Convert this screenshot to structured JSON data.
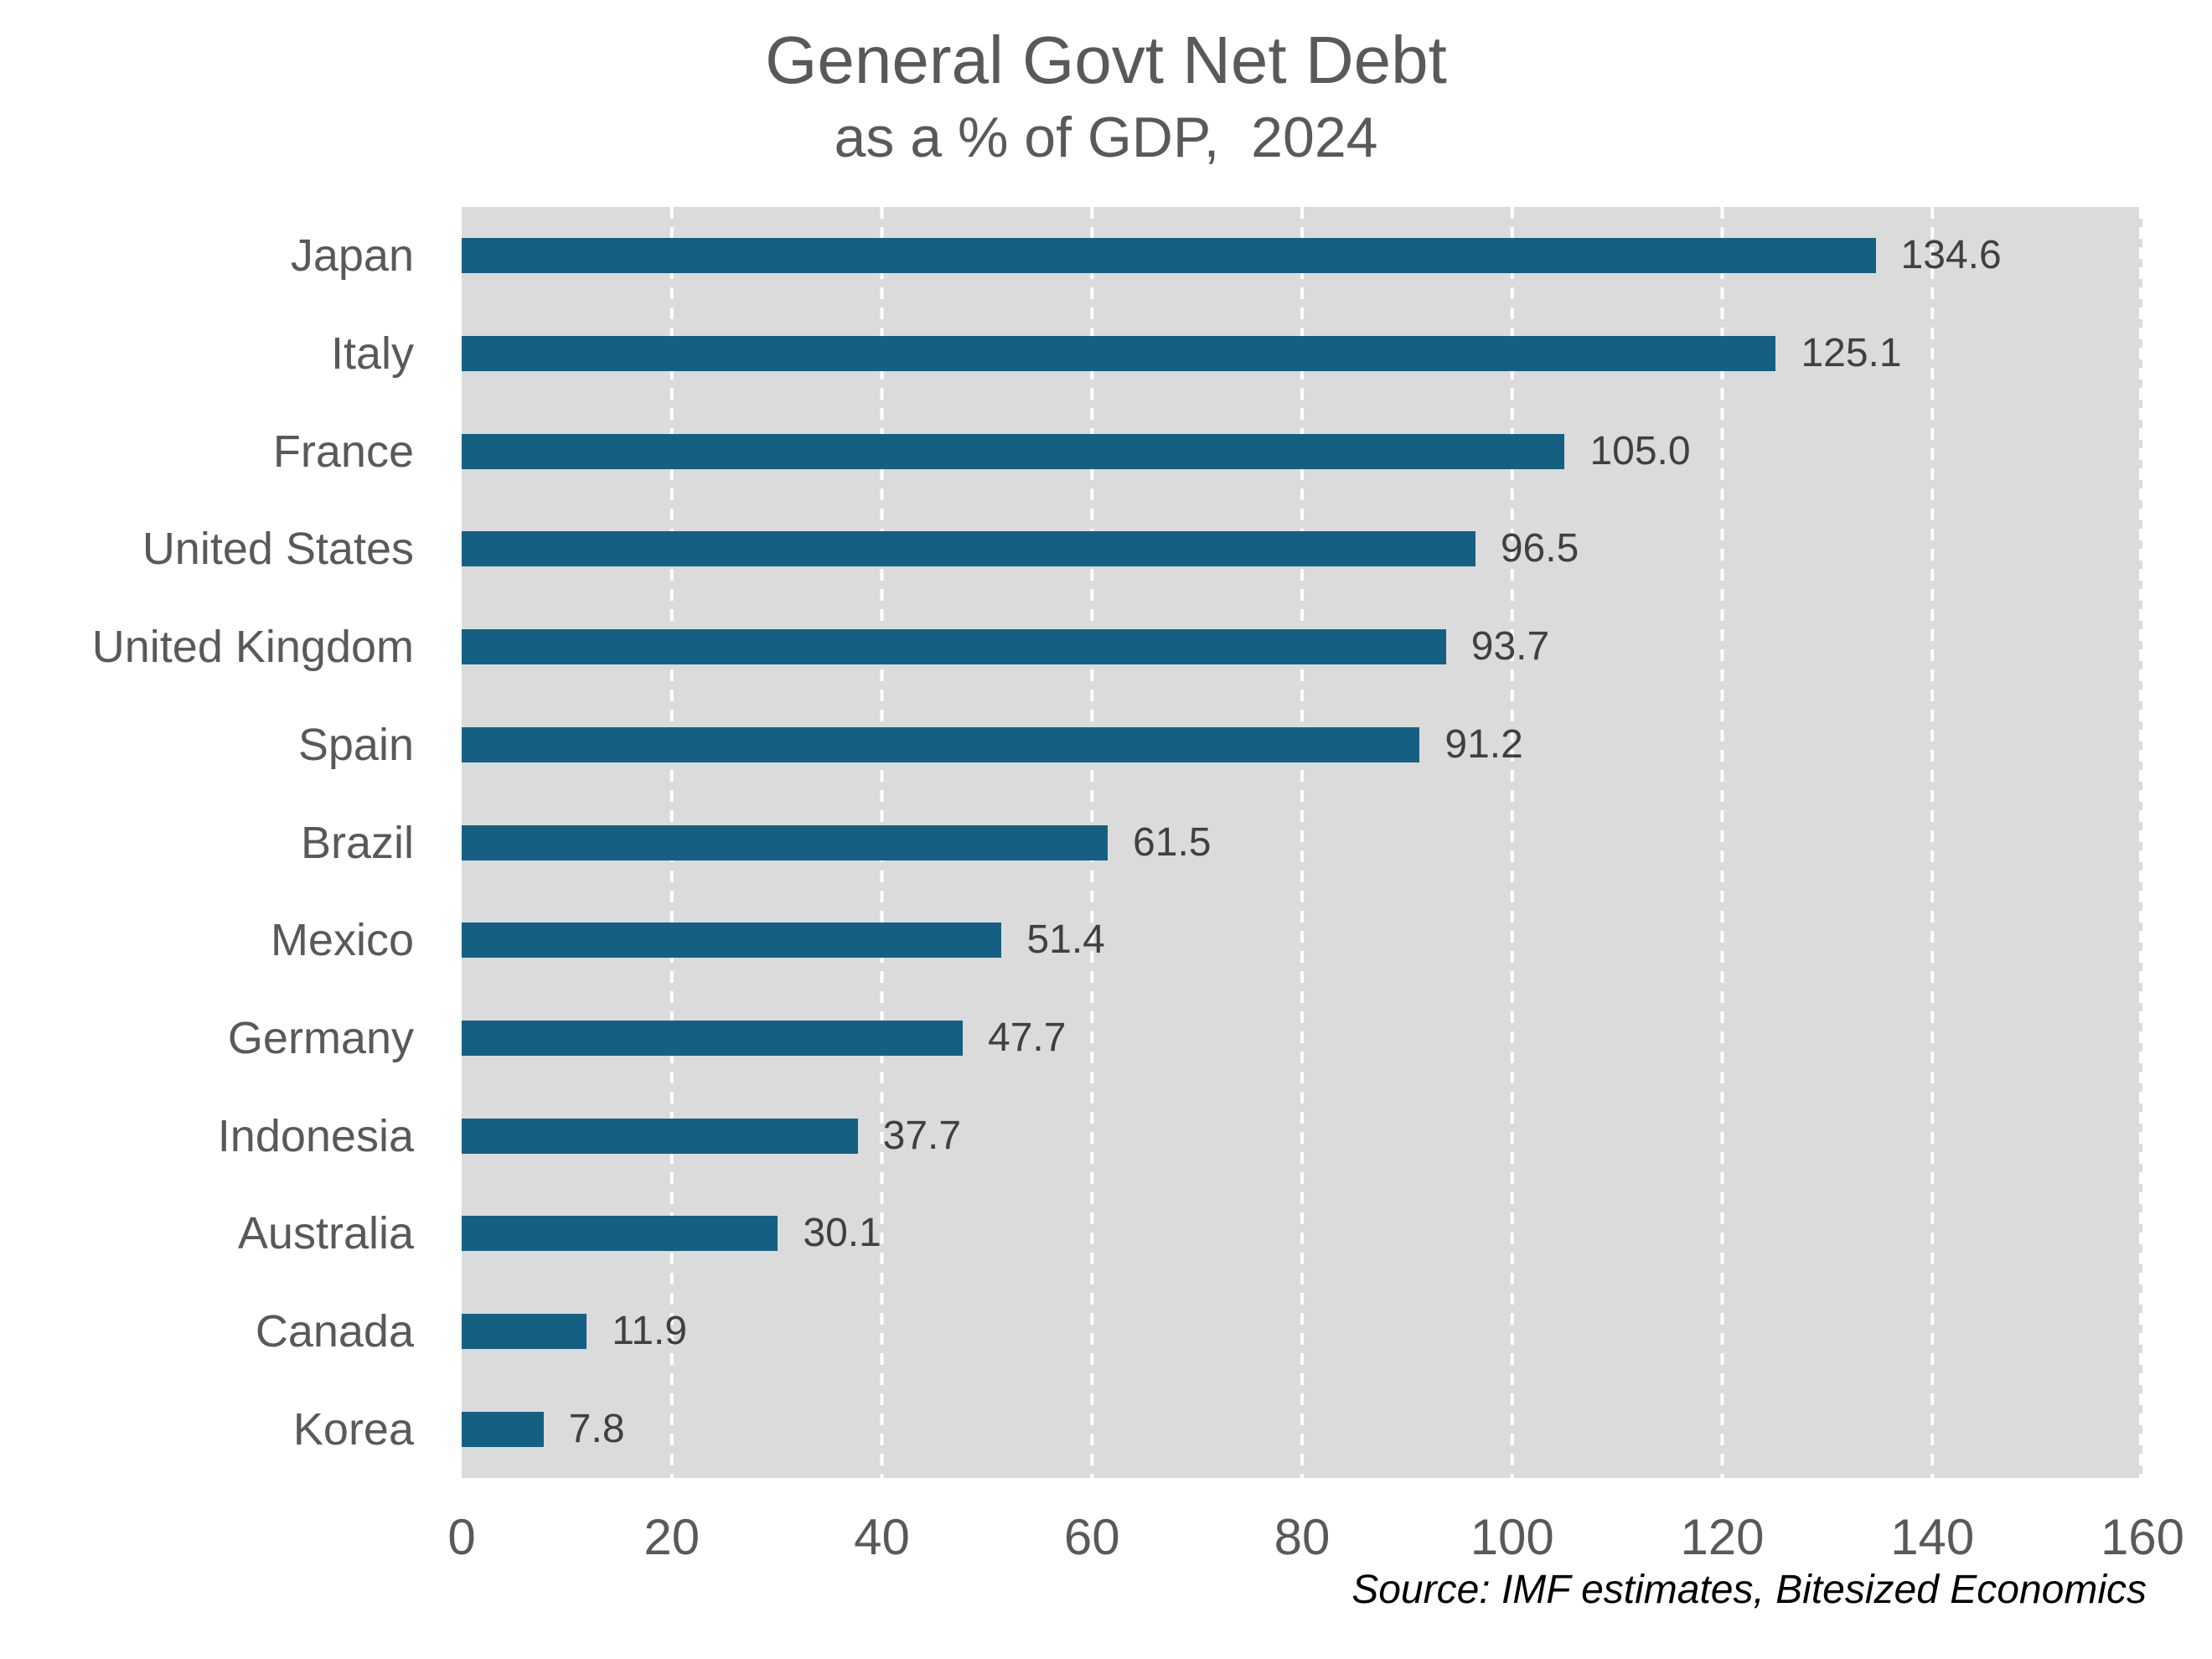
{
  "chart_data": {
    "type": "bar",
    "orientation": "horizontal",
    "title": "General Govt Net Debt",
    "subtitle": "as a % of GDP,  2024",
    "source": "Source: IMF estimates, Bitesized Economics",
    "categories": [
      "Japan",
      "Italy",
      "France",
      "United States",
      "United Kingdom",
      "Spain",
      "Brazil",
      "Mexico",
      "Germany",
      "Indonesia",
      "Australia",
      "Canada",
      "Korea"
    ],
    "values": [
      134.6,
      125.1,
      105.0,
      96.5,
      93.7,
      91.2,
      61.5,
      51.4,
      47.7,
      37.7,
      30.1,
      11.9,
      7.8
    ],
    "value_labels": [
      "134.6",
      "125.1",
      "105.0",
      "96.5",
      "93.7",
      "91.2",
      "61.5",
      "51.4",
      "47.7",
      "37.7",
      "30.1",
      "11.9",
      "7.8"
    ],
    "xlabel": "",
    "ylabel": "",
    "xlim": [
      0,
      160
    ],
    "x_ticks": [
      0,
      20,
      40,
      60,
      80,
      100,
      120,
      140,
      160
    ],
    "grid": "vertical-dashed",
    "legend": "none",
    "colors": {
      "bar": "#156082",
      "plot_background": "#DBDBDB",
      "gridline": "#FFFFFF",
      "title": "#595959",
      "axis_labels": "#595959",
      "value_labels": "#404040",
      "source": "#000000",
      "figure_background": "#FFFFFF"
    }
  }
}
